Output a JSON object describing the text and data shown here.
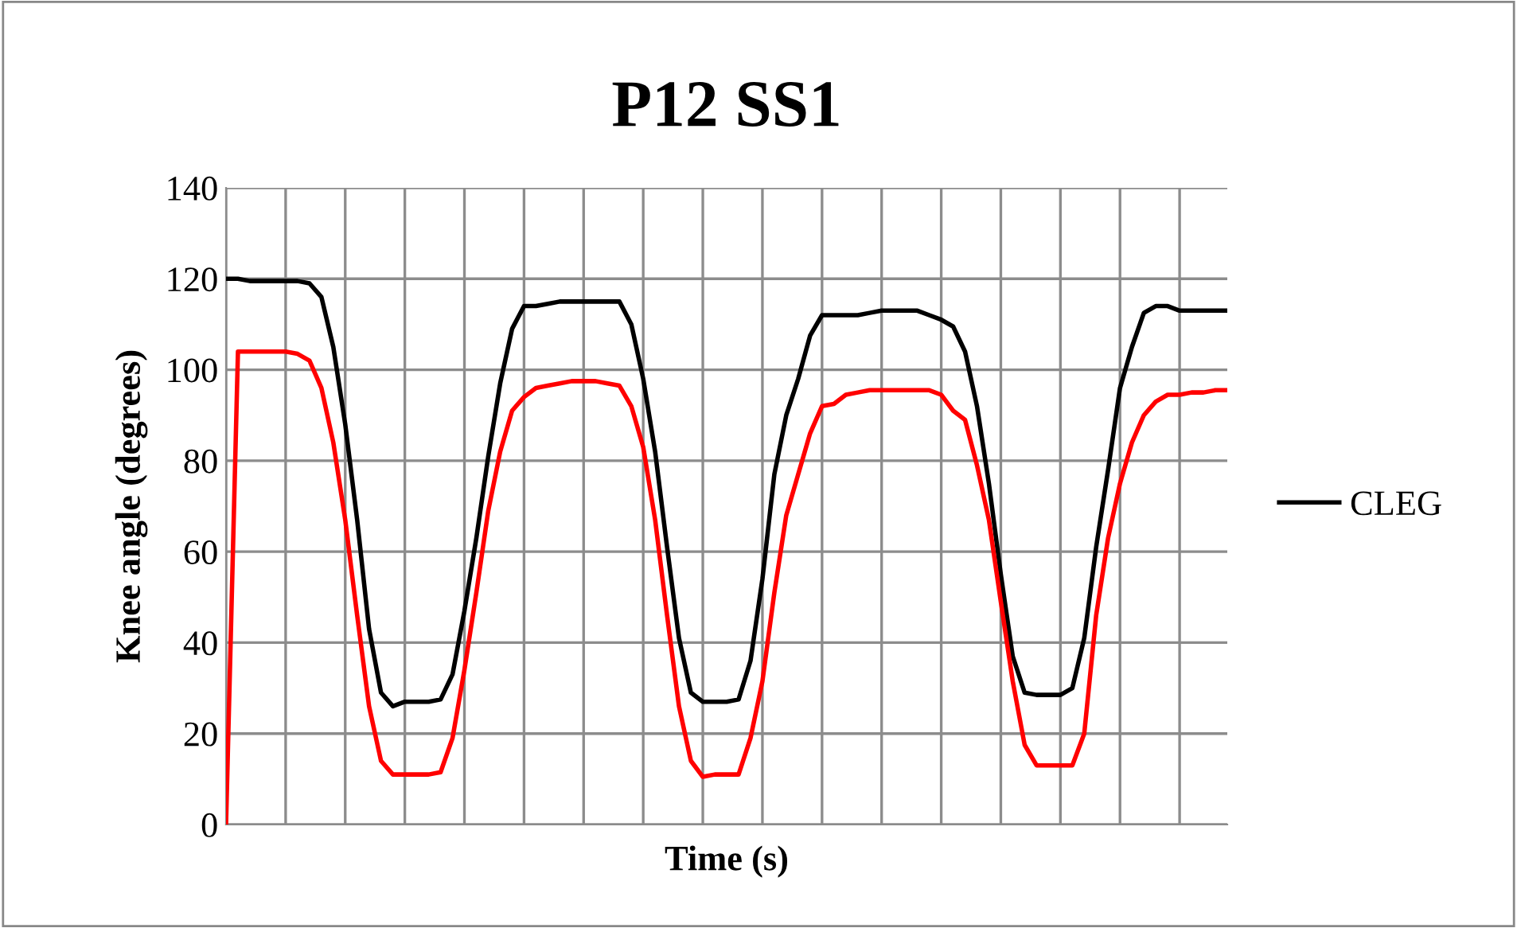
{
  "chart_data": {
    "type": "line",
    "title": "P12 SS1",
    "xlabel": "Time (s)",
    "ylabel": "Knee angle (degrees)",
    "categories": [
      null,
      null,
      null,
      null,
      null,
      null,
      null,
      null,
      null,
      null,
      null,
      null,
      null,
      null,
      null,
      null,
      null,
      null,
      null,
      null,
      null,
      null,
      null,
      null,
      null,
      null,
      null,
      null,
      null,
      null,
      null,
      null,
      null,
      null,
      null,
      null,
      null,
      null,
      null,
      null,
      null,
      null,
      null,
      null,
      null,
      null,
      null,
      null,
      null,
      null,
      null,
      null,
      null,
      null,
      null,
      null,
      null,
      null,
      null,
      null,
      null,
      null,
      null,
      null,
      null,
      null,
      null,
      null,
      null,
      null,
      null,
      null,
      null,
      null,
      null,
      null,
      null,
      null,
      null,
      null,
      null,
      null,
      null,
      null,
      null
    ],
    "series": [
      {
        "name": "CLEG",
        "color": "#000000",
        "values": [
          120,
          120,
          119.5,
          119.5,
          119.5,
          119.5,
          119.5,
          119,
          116,
          105,
          88,
          67,
          43,
          29,
          26,
          27,
          27,
          27,
          27.5,
          33,
          47,
          63,
          81,
          97,
          109,
          114,
          114,
          114.5,
          115,
          115,
          115,
          115,
          115,
          115,
          110,
          98,
          82,
          61,
          41,
          29,
          27,
          27,
          27,
          27.5,
          36,
          54,
          77,
          90,
          98,
          107.5,
          112,
          112,
          112,
          112,
          112.5,
          113,
          113,
          113,
          113,
          112,
          111,
          109.5,
          104,
          92,
          75,
          55,
          37,
          29,
          28.5,
          28.5,
          28.5,
          30,
          41,
          61,
          78,
          96,
          105,
          112.5,
          114,
          114,
          113,
          113,
          113,
          113,
          113
        ]
      },
      {
        "color": "#ff0000",
        "values": [
          0,
          104,
          104,
          104,
          104,
          104,
          103.5,
          102,
          96,
          84,
          67,
          46,
          26,
          14,
          11,
          11,
          11,
          11,
          11.5,
          19,
          34,
          51,
          69,
          82,
          91,
          94,
          96,
          96.5,
          97,
          97.5,
          97.5,
          97.5,
          97,
          96.5,
          92,
          83,
          67,
          46,
          26,
          14,
          10.5,
          11,
          11,
          11,
          19,
          31.5,
          51,
          68,
          77,
          86,
          92,
          92.5,
          94.5,
          95,
          95.5,
          95.5,
          95.5,
          95.5,
          95.5,
          95.5,
          94.5,
          91,
          89,
          79,
          67,
          49,
          31.5,
          17.5,
          13,
          13,
          13,
          13,
          20,
          46,
          63,
          75,
          84,
          90,
          93,
          94.5,
          94.5,
          95,
          95,
          95.5,
          95.5
        ]
      }
    ],
    "ylim": [
      0,
      140
    ],
    "yticks": [
      0,
      20,
      40,
      60,
      80,
      100,
      120,
      140
    ],
    "grid": true,
    "legend": "right",
    "marker": "none",
    "line_style": "solid"
  }
}
